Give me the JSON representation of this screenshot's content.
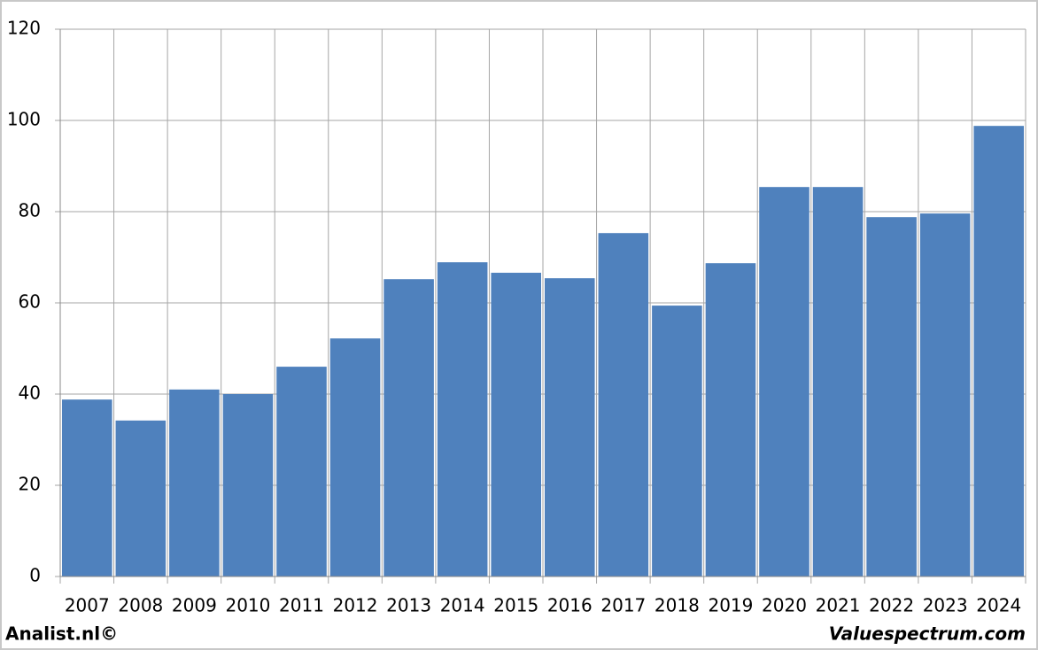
{
  "chart_data": {
    "type": "bar",
    "categories": [
      "2007",
      "2008",
      "2009",
      "2010",
      "2011",
      "2012",
      "2013",
      "2014",
      "2015",
      "2016",
      "2017",
      "2018",
      "2019",
      "2020",
      "2021",
      "2022",
      "2023",
      "2024"
    ],
    "values": [
      38.8,
      34.2,
      41,
      40,
      46,
      52.2,
      65.2,
      68.9,
      66.6,
      65.4,
      75.3,
      59.4,
      68.7,
      85.4,
      85.4,
      78.8,
      79.6,
      98.8
    ],
    "color": "#4f81bd",
    "ylim": [
      0,
      120
    ],
    "yticks": [
      0,
      20,
      40,
      60,
      80,
      100,
      120
    ],
    "grid": true,
    "footer_left": "Analist.nl©",
    "footer_right": "Valuespectrum.com"
  }
}
